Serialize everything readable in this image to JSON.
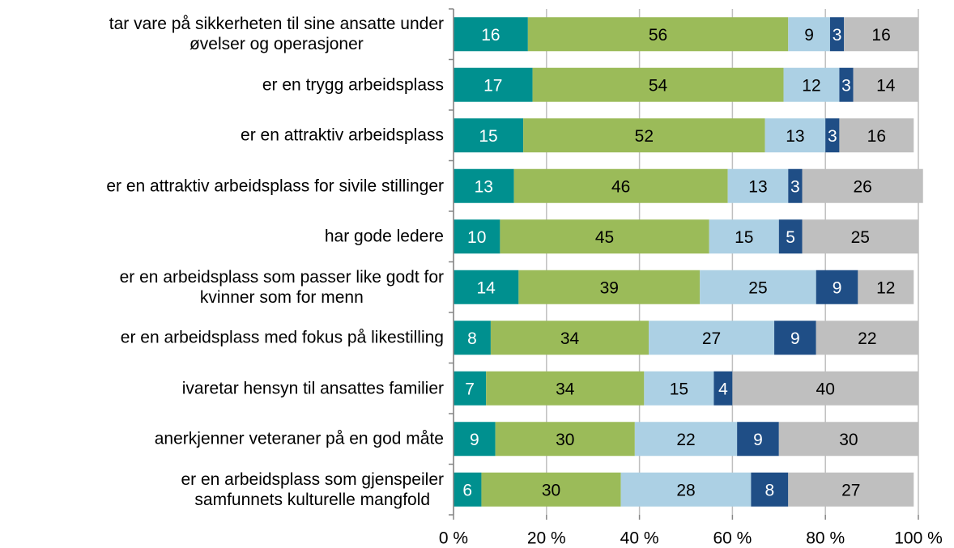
{
  "chart_data": {
    "type": "stacked-bar-horizontal",
    "categories": [
      "tar vare på sikkerheten til sine ansatte under\nøvelser og operasjoner",
      "er en trygg arbeidsplass",
      "er en attraktiv arbeidsplass",
      "er en attraktiv arbeidsplass for sivile stillinger",
      "har gode ledere",
      "er en arbeidsplass som passer like godt for\nkvinner som for menn",
      "er en arbeidsplass med fokus på likestilling",
      "ivaretar hensyn til ansattes familier",
      "anerkjenner veteraner på en god måte",
      "er en arbeidsplass som gjenspeiler\nsamfunnets kulturelle mangfold"
    ],
    "series": [
      {
        "color": "#00908f",
        "values": [
          16,
          17,
          15,
          13,
          10,
          14,
          8,
          7,
          9,
          6
        ]
      },
      {
        "color": "#9bbb59",
        "values": [
          56,
          54,
          52,
          46,
          45,
          39,
          34,
          34,
          30,
          30
        ]
      },
      {
        "color": "#acd0e4",
        "values": [
          9,
          12,
          13,
          13,
          15,
          25,
          27,
          15,
          22,
          28
        ]
      },
      {
        "color": "#1f4e86",
        "values": [
          3,
          3,
          3,
          3,
          5,
          9,
          9,
          4,
          9,
          8
        ]
      },
      {
        "color": "#bfbfbf",
        "values": [
          16,
          14,
          16,
          26,
          25,
          12,
          22,
          40,
          30,
          27
        ]
      }
    ],
    "xlim": [
      0,
      100
    ],
    "xticks": [
      {
        "value": 0,
        "label": "0 %"
      },
      {
        "value": 20,
        "label": "20 %"
      },
      {
        "value": 40,
        "label": "40 %"
      },
      {
        "value": 60,
        "label": "60 %"
      },
      {
        "value": 80,
        "label": "80 %"
      },
      {
        "value": 100,
        "label": "100 %"
      }
    ],
    "grid": true
  }
}
